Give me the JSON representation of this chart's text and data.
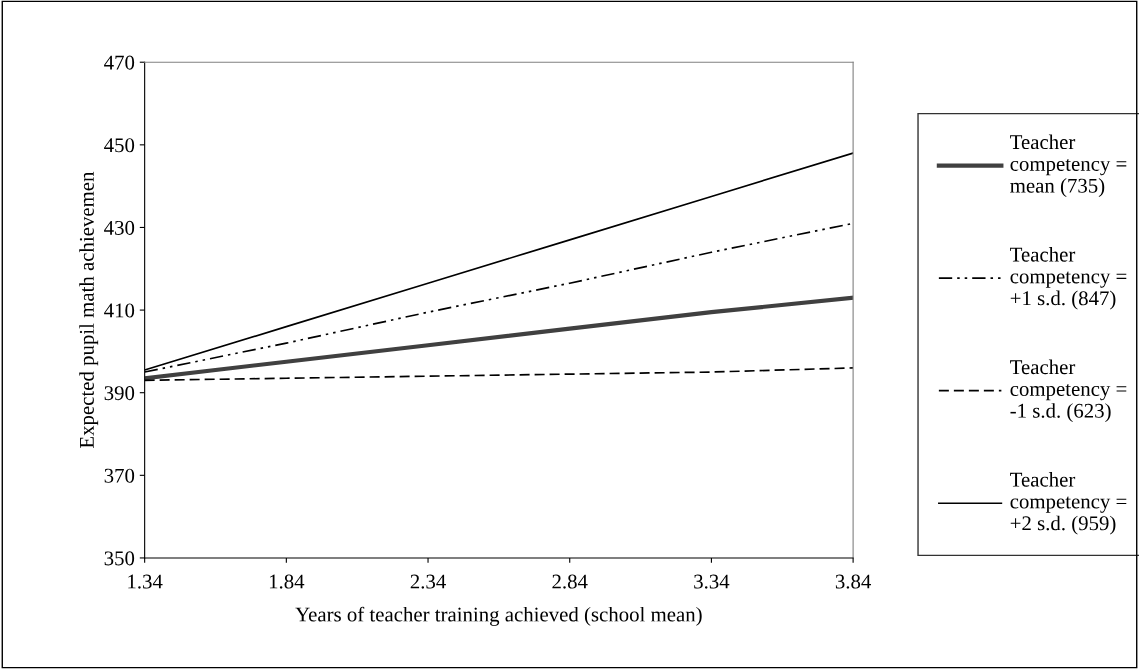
{
  "chart_data": {
    "type": "line",
    "xlabel": "Years of teacher training achieved (school mean)",
    "ylabel": "Expected pupil math achievemen",
    "x": [
      1.34,
      1.84,
      2.34,
      2.84,
      3.34,
      3.84
    ],
    "series": [
      {
        "name": "Teacher competency = mean (735)",
        "color": "#404040",
        "line_style": "solid",
        "values": [
          393.5,
          397.5,
          401.5,
          405.5,
          409.5,
          413
        ]
      },
      {
        "name": "Teacher competency = +1 s.d. (847)",
        "color": "#000000",
        "line_style": "dashdotdot",
        "values": [
          395,
          402,
          409.5,
          416.5,
          424,
          431
        ]
      },
      {
        "name": "Teacher competency = -1 s.d. (623)",
        "color": "#000000",
        "line_style": "dashed",
        "values": [
          393,
          393.5,
          394,
          394.5,
          395,
          396
        ]
      },
      {
        "name": "Teacher competency = +2 s.d. (959)",
        "color": "#000000",
        "line_style": "solid",
        "values": [
          395.5,
          406,
          416.5,
          427,
          437.5,
          448
        ]
      }
    ],
    "xlim": [
      1.34,
      3.84
    ],
    "xticks": [
      1.34,
      1.84,
      2.34,
      2.84,
      3.34,
      3.84
    ],
    "ylim": [
      350,
      470
    ],
    "yticks": [
      350,
      370,
      390,
      410,
      430,
      450,
      470
    ],
    "grid": false,
    "legend": "right",
    "marker": "none"
  }
}
